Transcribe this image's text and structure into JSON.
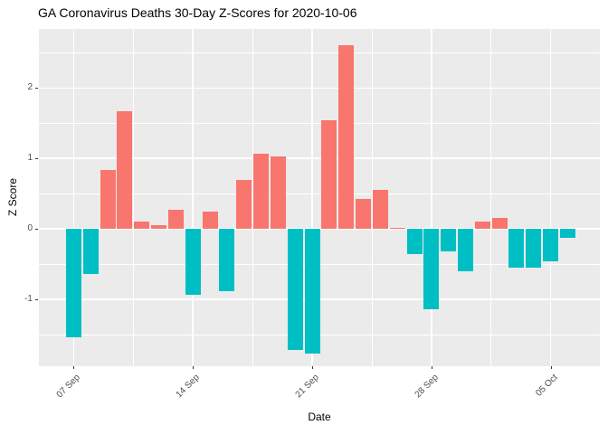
{
  "chart_data": {
    "type": "bar",
    "title": "GA Coronavirus Deaths 30-Day Z-Scores for 2020-10-06",
    "xlabel": "Date",
    "ylabel": "Z Score",
    "x": [
      "2020-09-07",
      "2020-09-08",
      "2020-09-09",
      "2020-09-10",
      "2020-09-11",
      "2020-09-12",
      "2020-09-13",
      "2020-09-14",
      "2020-09-15",
      "2020-09-16",
      "2020-09-17",
      "2020-09-18",
      "2020-09-19",
      "2020-09-20",
      "2020-09-21",
      "2020-09-22",
      "2020-09-23",
      "2020-09-24",
      "2020-09-25",
      "2020-09-26",
      "2020-09-27",
      "2020-09-28",
      "2020-09-29",
      "2020-09-30",
      "2020-10-01",
      "2020-10-02",
      "2020-10-03",
      "2020-10-04",
      "2020-10-05",
      "2020-10-06"
    ],
    "values": [
      -1.54,
      -0.64,
      0.84,
      1.67,
      0.1,
      0.05,
      0.27,
      -0.93,
      0.25,
      -0.88,
      0.7,
      1.07,
      1.03,
      -1.72,
      -1.77,
      1.54,
      2.61,
      0.42,
      0.56,
      0.02,
      -0.36,
      -1.14,
      -0.32,
      -0.6,
      0.11,
      0.15,
      -0.55,
      -0.55,
      -0.46,
      -0.13
    ],
    "x_tick_labels": [
      {
        "label": "07 Sep",
        "index": 0
      },
      {
        "label": "14 Sep",
        "index": 7
      },
      {
        "label": "21 Sep",
        "index": 14
      },
      {
        "label": "28 Sep",
        "index": 21
      },
      {
        "label": "05 Oct",
        "index": 28
      }
    ],
    "x_minor_indices": [
      3.5,
      10.5,
      17.5,
      24.5
    ],
    "y_ticks_major": [
      -1,
      0,
      1,
      2
    ],
    "y_ticks_minor": [
      -1.5,
      -0.5,
      0.5,
      1.5,
      2.5
    ],
    "ylim": [
      -1.95,
      2.84
    ],
    "grid": true,
    "legend": "none",
    "colors": {
      "positive": "#F8766D",
      "negative": "#00BFC4",
      "panel_bg": "#EBEBEB",
      "grid": "#FFFFFF",
      "tick_text": "#4D4D4D",
      "text": "#000000"
    }
  }
}
